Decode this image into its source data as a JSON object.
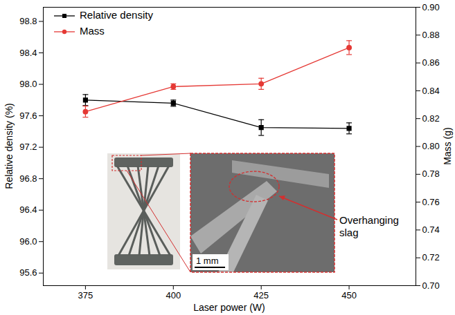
{
  "chart_data": {
    "type": "line",
    "x_label": "Laser power (W)",
    "y_label": "Relative density (%)",
    "y2_label": "Mass (g)",
    "x": [
      375,
      400,
      425,
      450
    ],
    "series": [
      {
        "name": "Relative density",
        "color": "#000000",
        "marker": "square",
        "values": [
          97.8,
          97.76,
          97.45,
          97.44
        ],
        "errors": [
          0.07,
          0.04,
          0.1,
          0.07
        ]
      },
      {
        "name": "Mass",
        "color": "#e53935",
        "marker": "circle",
        "axis": "y2",
        "values": [
          0.825,
          0.843,
          0.845,
          0.871
        ],
        "errors": [
          0.004,
          0.002,
          0.004,
          0.005
        ]
      }
    ],
    "xlim": [
      363,
      469
    ],
    "xticks": [
      375,
      400,
      425,
      450
    ],
    "ylim": [
      95.44,
      98.98
    ],
    "yticks": [
      95.6,
      {
        "value": 96.0,
        "label": "96.0"
      },
      96.4,
      96.8,
      97.2,
      97.6,
      {
        "value": 98.0,
        "label": "98.0"
      },
      98.4,
      98.8
    ],
    "y2lim": [
      0.7,
      0.9
    ],
    "y2ticks": [
      {
        "value": 0.7,
        "label": "0.70"
      },
      0.72,
      0.74,
      0.76,
      0.78,
      {
        "value": 0.8,
        "label": "0.80"
      },
      0.82,
      0.84,
      0.86,
      0.88,
      {
        "value": 0.9,
        "label": "0.90"
      }
    ],
    "legend": "upper left",
    "grid": false,
    "annotations": [
      "Overhanging slag",
      "1 mm"
    ]
  }
}
